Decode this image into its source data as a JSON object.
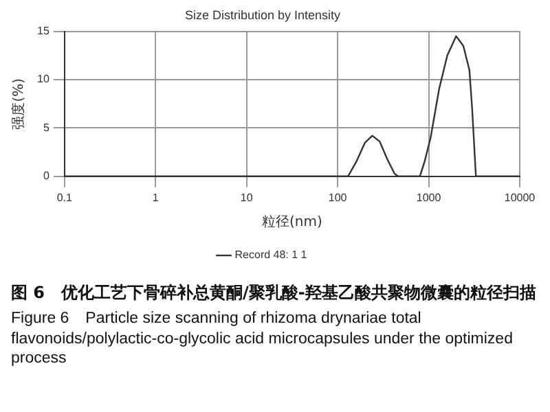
{
  "chart_data": {
    "type": "line",
    "title": "Size Distribution by Intensity",
    "xlabel": "粒径(nm)",
    "ylabel": "强度(%)",
    "x": [
      0.1,
      1,
      10,
      100,
      130,
      160,
      200,
      240,
      290,
      350,
      420,
      460,
      800,
      900,
      1050,
      1300,
      1600,
      2000,
      2400,
      2800,
      3000,
      3300,
      10000
    ],
    "series": [
      {
        "name": "Record 48: 1 1",
        "color": "#333333",
        "values": [
          0,
          0,
          0,
          0,
          0,
          1.5,
          3.5,
          4.2,
          3.6,
          1.8,
          0.3,
          0,
          0,
          1.5,
          4,
          9,
          12.5,
          14.5,
          13.5,
          11,
          7,
          0,
          0
        ]
      }
    ],
    "log": "x",
    "xlim": [
      0.1,
      10000
    ],
    "xticks": [
      0.1,
      1,
      10,
      100,
      1000,
      10000
    ],
    "ylim": [
      0,
      15
    ],
    "yticks": [
      0,
      5,
      10,
      15
    ],
    "grid": true,
    "legend": "bottom",
    "marker": "none",
    "line_style": "solid",
    "annotations": [
      "图 6　优化工艺下骨碎补总黄酮/聚乳酸-羟基乙酸共聚物微囊的粒径扫描",
      "Figure 6　Particle size scanning of rhizoma drynariae total flavonoids/polylactic-co-glycolic acid microcapsules under the optimized process"
    ]
  }
}
